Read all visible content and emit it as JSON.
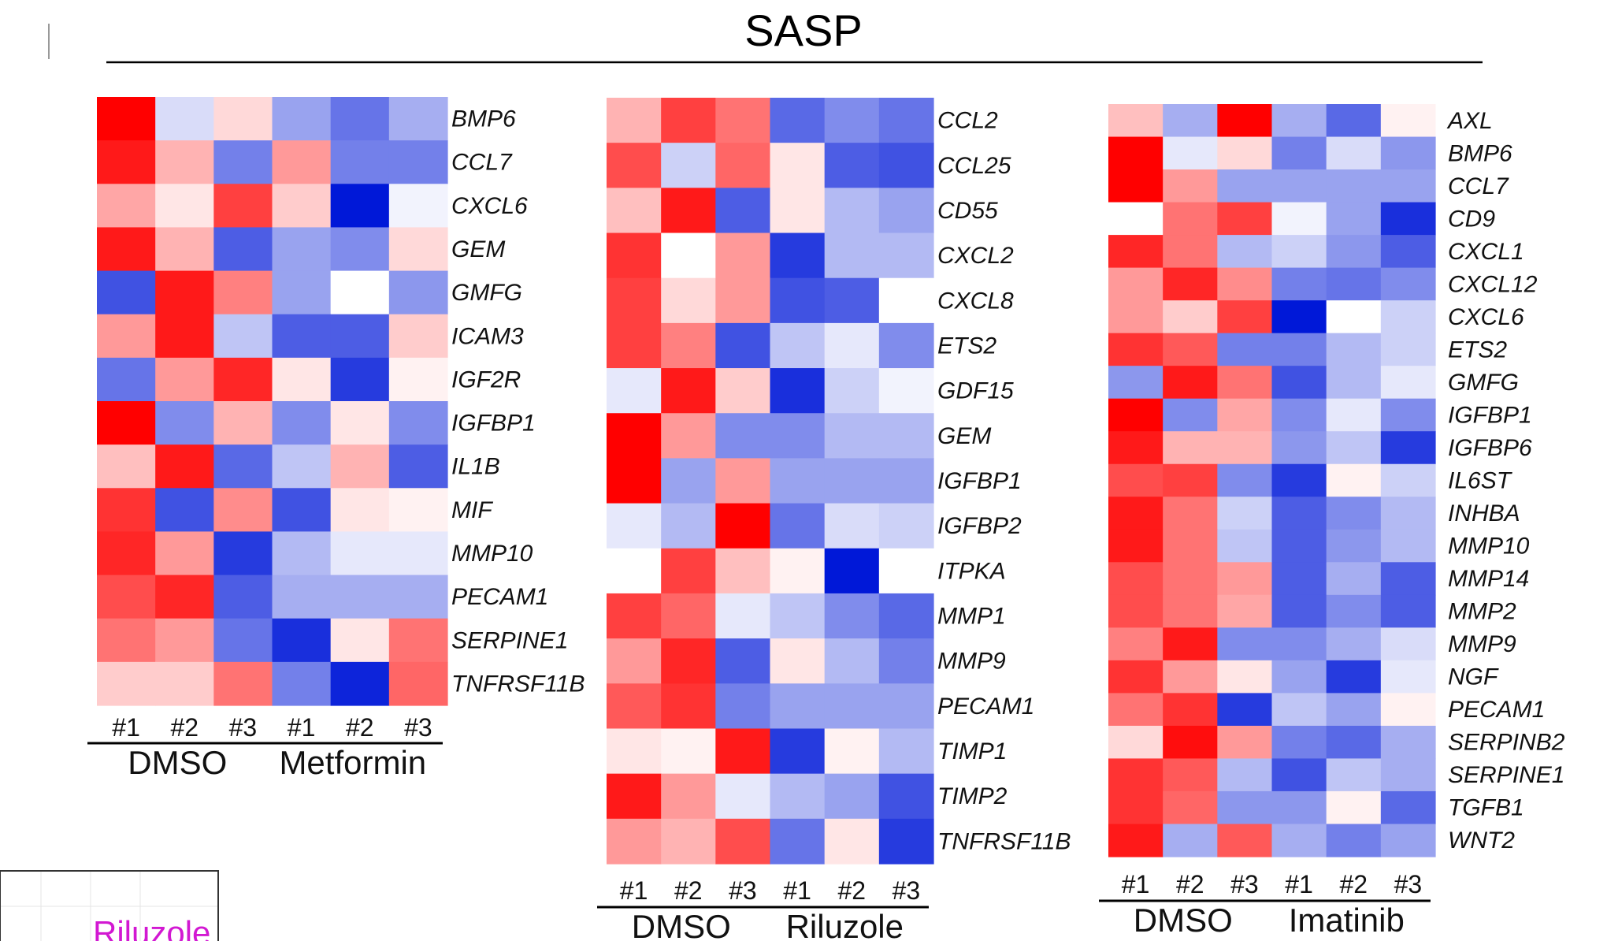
{
  "title": "SASP",
  "inset_label": "Riluzole",
  "chart_data": [
    {
      "type": "heatmap",
      "rows": [
        "BMP6",
        "CCL7",
        "CXCL6",
        "GEM",
        "GMFG",
        "ICAM3",
        "IGF2R",
        "IGFBP1",
        "IL1B",
        "MIF",
        "MMP10",
        "PECAM1",
        "SERPINE1",
        "TNFRSF11B"
      ],
      "columns": [
        "#1",
        "#2",
        "#3",
        "#1",
        "#2",
        "#3"
      ],
      "groups": [
        {
          "name": "DMSO",
          "columns": 3
        },
        {
          "name": "Metformin",
          "columns": 3
        }
      ],
      "values": [
        [
          1.0,
          -0.15,
          0.15,
          -0.4,
          -0.6,
          -0.35
        ],
        [
          0.9,
          0.3,
          -0.55,
          0.4,
          -0.55,
          -0.55
        ],
        [
          0.35,
          0.1,
          0.75,
          0.2,
          -1.0,
          -0.05
        ],
        [
          0.9,
          0.3,
          -0.7,
          -0.4,
          -0.5,
          0.15
        ],
        [
          -0.75,
          0.9,
          0.5,
          -0.4,
          0.0,
          -0.45
        ],
        [
          0.4,
          0.9,
          -0.25,
          -0.7,
          -0.7,
          0.2
        ],
        [
          -0.6,
          0.4,
          0.85,
          0.1,
          -0.85,
          0.05
        ],
        [
          1.0,
          -0.5,
          0.3,
          -0.5,
          0.1,
          -0.5
        ],
        [
          0.25,
          0.9,
          -0.65,
          -0.25,
          0.3,
          -0.7
        ],
        [
          0.8,
          -0.75,
          0.45,
          -0.75,
          0.1,
          0.05
        ],
        [
          0.85,
          0.4,
          -0.85,
          -0.3,
          -0.1,
          -0.1
        ],
        [
          0.7,
          0.85,
          -0.7,
          -0.35,
          -0.35,
          -0.35
        ],
        [
          0.55,
          0.4,
          -0.6,
          -0.9,
          0.1,
          0.55
        ],
        [
          0.2,
          0.2,
          0.55,
          -0.55,
          -0.95,
          0.6
        ]
      ]
    },
    {
      "type": "heatmap",
      "rows": [
        "CCL2",
        "CCL25",
        "CD55",
        "CXCL2",
        "CXCL8",
        "ETS2",
        "GDF15",
        "GEM",
        "IGFBP1",
        "IGFBP2",
        "ITPKA",
        "MMP1",
        "MMP9",
        "PECAM1",
        "TIMP1",
        "TIMP2",
        "TNFRSF11B"
      ],
      "columns": [
        "#1",
        "#2",
        "#3",
        "#1",
        "#2",
        "#3"
      ],
      "groups": [
        {
          "name": "DMSO",
          "columns": 3
        },
        {
          "name": "Riluzole",
          "columns": 3
        }
      ],
      "values": [
        [
          0.3,
          0.75,
          0.55,
          -0.65,
          -0.5,
          -0.6
        ],
        [
          0.7,
          -0.2,
          0.6,
          0.1,
          -0.7,
          -0.75
        ],
        [
          0.25,
          0.9,
          -0.7,
          0.1,
          -0.3,
          -0.4
        ],
        [
          0.8,
          0.0,
          0.4,
          -0.85,
          -0.3,
          -0.3
        ],
        [
          0.75,
          0.15,
          0.4,
          -0.75,
          -0.7,
          0.0
        ],
        [
          0.75,
          0.5,
          -0.75,
          -0.25,
          -0.1,
          -0.5
        ],
        [
          -0.1,
          0.9,
          0.2,
          -0.9,
          -0.2,
          -0.05
        ],
        [
          1.0,
          0.4,
          -0.5,
          -0.5,
          -0.3,
          -0.3
        ],
        [
          1.0,
          -0.4,
          0.4,
          -0.4,
          -0.4,
          -0.4
        ],
        [
          -0.1,
          -0.3,
          1.0,
          -0.6,
          -0.15,
          -0.2
        ],
        [
          0.0,
          0.75,
          0.25,
          0.05,
          -1.0,
          0.0
        ],
        [
          0.75,
          0.6,
          -0.1,
          -0.25,
          -0.5,
          -0.65
        ],
        [
          0.4,
          0.85,
          -0.7,
          0.1,
          -0.3,
          -0.55
        ],
        [
          0.65,
          0.8,
          -0.55,
          -0.4,
          -0.4,
          -0.4
        ],
        [
          0.1,
          0.05,
          0.9,
          -0.85,
          0.05,
          -0.3
        ],
        [
          0.9,
          0.4,
          -0.1,
          -0.3,
          -0.4,
          -0.75
        ],
        [
          0.4,
          0.3,
          0.7,
          -0.6,
          0.1,
          -0.85
        ]
      ]
    },
    {
      "type": "heatmap",
      "rows": [
        "AXL",
        "BMP6",
        "CCL7",
        "CD9",
        "CXCL1",
        "CXCL12",
        "CXCL6",
        "ETS2",
        "GMFG",
        "IGFBP1",
        "IGFBP6",
        "IL6ST",
        "INHBA",
        "MMP10",
        "MMP14",
        "MMP2",
        "MMP9",
        "NGF",
        "PECAM1",
        "SERPINB2",
        "SERPINE1",
        "TGFB1",
        "WNT2"
      ],
      "columns": [
        "#1",
        "#2",
        "#3",
        "#1",
        "#2",
        "#3"
      ],
      "groups": [
        {
          "name": "DMSO",
          "columns": 3
        },
        {
          "name": "Imatinib",
          "columns": 3
        }
      ],
      "values": [
        [
          0.25,
          -0.35,
          1.0,
          -0.35,
          -0.65,
          0.05
        ],
        [
          1.0,
          -0.1,
          0.15,
          -0.55,
          -0.15,
          -0.45
        ],
        [
          1.0,
          0.4,
          -0.4,
          -0.4,
          -0.4,
          -0.4
        ],
        [
          0.0,
          0.55,
          0.75,
          -0.05,
          -0.4,
          -0.9
        ],
        [
          0.85,
          0.55,
          -0.3,
          -0.2,
          -0.45,
          -0.7
        ],
        [
          0.4,
          0.85,
          0.45,
          -0.55,
          -0.6,
          -0.5
        ],
        [
          0.4,
          0.2,
          0.75,
          -1.0,
          0.0,
          -0.2
        ],
        [
          0.8,
          0.65,
          -0.55,
          -0.55,
          -0.3,
          -0.2
        ],
        [
          -0.45,
          0.9,
          0.55,
          -0.75,
          -0.3,
          -0.1
        ],
        [
          1.0,
          -0.5,
          0.35,
          -0.5,
          -0.1,
          -0.5
        ],
        [
          0.9,
          0.3,
          0.3,
          -0.45,
          -0.25,
          -0.85
        ],
        [
          0.7,
          0.75,
          -0.5,
          -0.85,
          0.05,
          -0.2
        ],
        [
          0.9,
          0.55,
          -0.2,
          -0.7,
          -0.5,
          -0.3
        ],
        [
          0.9,
          0.55,
          -0.25,
          -0.7,
          -0.45,
          -0.3
        ],
        [
          0.7,
          0.55,
          0.4,
          -0.7,
          -0.35,
          -0.7
        ],
        [
          0.7,
          0.55,
          0.35,
          -0.7,
          -0.5,
          -0.7
        ],
        [
          0.5,
          0.9,
          -0.5,
          -0.5,
          -0.35,
          -0.15
        ],
        [
          0.8,
          0.4,
          0.1,
          -0.4,
          -0.85,
          -0.1
        ],
        [
          0.55,
          0.8,
          -0.85,
          -0.25,
          -0.4,
          0.05
        ],
        [
          0.15,
          0.95,
          0.4,
          -0.55,
          -0.65,
          -0.35
        ],
        [
          0.8,
          0.65,
          -0.3,
          -0.75,
          -0.25,
          -0.35
        ],
        [
          0.8,
          0.6,
          -0.45,
          -0.45,
          0.05,
          -0.65
        ],
        [
          0.9,
          -0.35,
          0.65,
          -0.35,
          -0.55,
          -0.4
        ]
      ]
    }
  ]
}
